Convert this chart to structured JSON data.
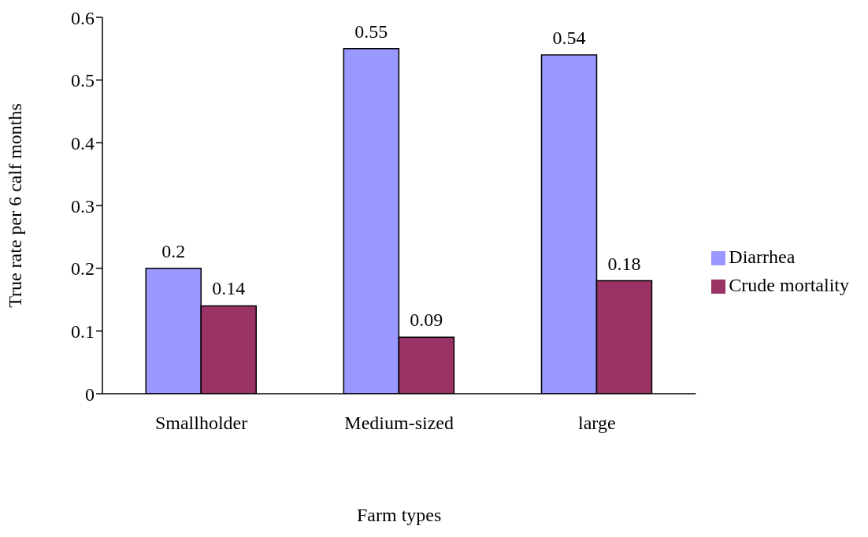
{
  "chart_data": {
    "type": "bar",
    "xlabel": "Farm types",
    "ylabel": "True rate per 6 calf months",
    "categories": [
      "Smallholder",
      "Medium-sized",
      "large"
    ],
    "series": [
      {
        "name": "Diarrhea",
        "color": "#9999ff",
        "values": [
          0.2,
          0.55,
          0.54
        ]
      },
      {
        "name": "Crude mortality",
        "color": "#993366",
        "values": [
          0.14,
          0.09,
          0.18
        ]
      }
    ],
    "ylim": [
      0,
      0.6
    ],
    "yticks": [
      0,
      0.1,
      0.2,
      0.3,
      0.4,
      0.5,
      0.6
    ],
    "grid": false,
    "legend": "right",
    "data_labels": true
  }
}
